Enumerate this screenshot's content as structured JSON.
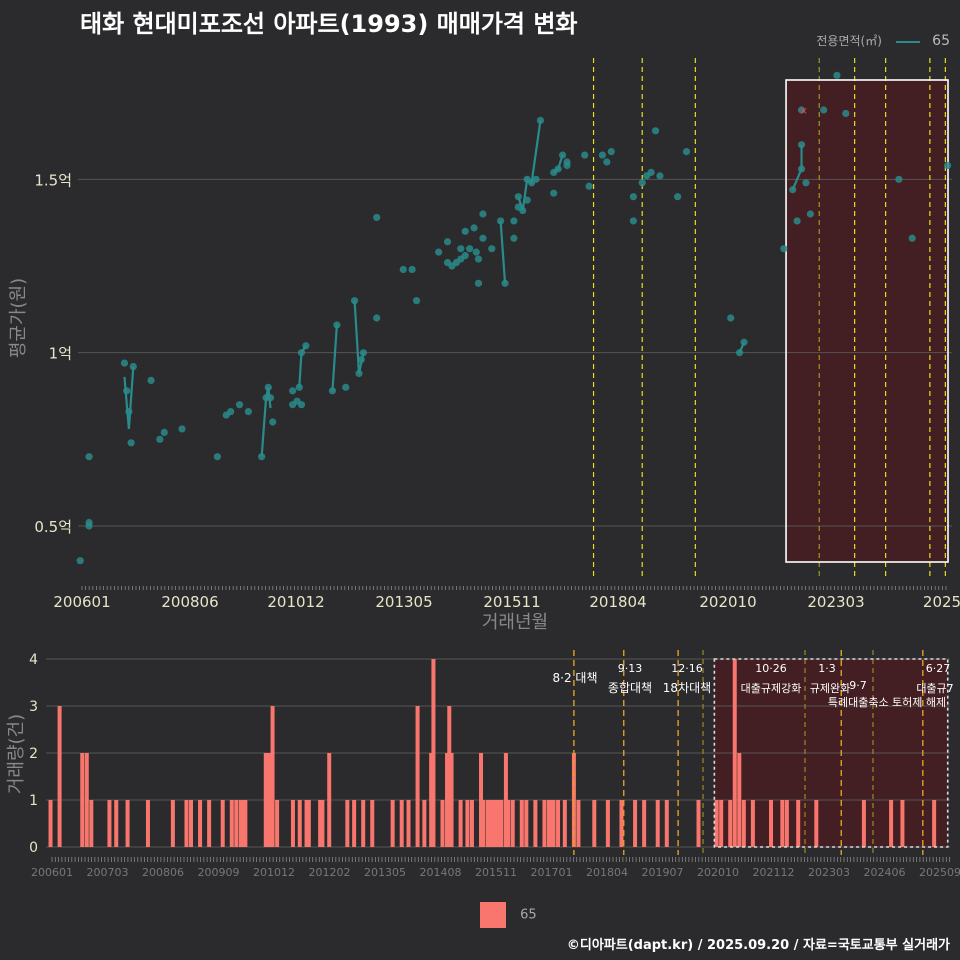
{
  "title": "태화 현대미포조선 아파트(1993) 매매가격 변화",
  "legend_top": {
    "label": "전용면적(㎡)",
    "value": "65",
    "color": "#2a8b8b"
  },
  "legend_bottom": {
    "value": "65",
    "color": "#f8766d"
  },
  "footer": "©디아파트(dapt.kr) / 2025.09.20 / 자료=국토교통부 실거래가",
  "chart_data": [
    {
      "type": "scatter",
      "title": "태화 현대미포조선 아파트(1993) 매매가격 변화",
      "xlabel": "거래년월",
      "ylabel": "평균가(원)",
      "x_ticks": [
        "200601",
        "200806",
        "201012",
        "201305",
        "201511",
        "201804",
        "202010",
        "202303",
        "2025"
      ],
      "y_ticks": [
        {
          "v": 0.5,
          "label": "0.5억"
        },
        {
          "v": 1.0,
          "label": "1억"
        },
        {
          "v": 1.5,
          "label": "1.5억"
        }
      ],
      "ylim": [
        0.35,
        1.85
      ],
      "xlim": [
        2005.95,
        2025.7
      ],
      "points": [
        [
          2006.0,
          0.4
        ],
        [
          2006.2,
          0.5
        ],
        [
          2006.2,
          0.51
        ],
        [
          2006.2,
          0.7
        ],
        [
          2007.0,
          0.97
        ],
        [
          2007.05,
          0.89
        ],
        [
          2007.1,
          0.83
        ],
        [
          2007.15,
          0.74
        ],
        [
          2007.2,
          0.96
        ],
        [
          2007.6,
          0.92
        ],
        [
          2007.8,
          0.75
        ],
        [
          2007.9,
          0.77
        ],
        [
          2008.3,
          0.78
        ],
        [
          2009.1,
          0.7
        ],
        [
          2009.3,
          0.82
        ],
        [
          2009.4,
          0.83
        ],
        [
          2009.6,
          0.85
        ],
        [
          2009.8,
          0.83
        ],
        [
          2010.1,
          0.7
        ],
        [
          2010.2,
          0.87
        ],
        [
          2010.25,
          0.9
        ],
        [
          2010.3,
          0.87
        ],
        [
          2010.35,
          0.8
        ],
        [
          2010.8,
          0.85
        ],
        [
          2010.8,
          0.89
        ],
        [
          2010.9,
          0.86
        ],
        [
          2010.95,
          0.9
        ],
        [
          2011.0,
          0.85
        ],
        [
          2011.0,
          1.0
        ],
        [
          2011.1,
          1.02
        ],
        [
          2011.7,
          0.89
        ],
        [
          2011.8,
          1.08
        ],
        [
          2012.0,
          0.9
        ],
        [
          2012.2,
          1.15
        ],
        [
          2012.3,
          0.94
        ],
        [
          2012.35,
          0.98
        ],
        [
          2012.4,
          1.0
        ],
        [
          2012.7,
          1.1
        ],
        [
          2012.7,
          1.39
        ],
        [
          2013.3,
          1.24
        ],
        [
          2013.5,
          1.24
        ],
        [
          2013.6,
          1.15
        ],
        [
          2014.1,
          1.29
        ],
        [
          2014.3,
          1.26
        ],
        [
          2014.3,
          1.32
        ],
        [
          2014.4,
          1.25
        ],
        [
          2014.5,
          1.26
        ],
        [
          2014.6,
          1.27
        ],
        [
          2014.6,
          1.3
        ],
        [
          2014.7,
          1.28
        ],
        [
          2014.7,
          1.35
        ],
        [
          2014.8,
          1.3
        ],
        [
          2014.9,
          1.36
        ],
        [
          2014.95,
          1.29
        ],
        [
          2015.0,
          1.2
        ],
        [
          2015.0,
          1.27
        ],
        [
          2015.1,
          1.33
        ],
        [
          2015.1,
          1.4
        ],
        [
          2015.3,
          1.3
        ],
        [
          2015.5,
          1.38
        ],
        [
          2015.6,
          1.2
        ],
        [
          2015.8,
          1.33
        ],
        [
          2015.8,
          1.38
        ],
        [
          2015.9,
          1.42
        ],
        [
          2015.9,
          1.45
        ],
        [
          2016.0,
          1.41
        ],
        [
          2016.1,
          1.44
        ],
        [
          2016.1,
          1.5
        ],
        [
          2016.2,
          1.49
        ],
        [
          2016.3,
          1.5
        ],
        [
          2016.4,
          1.67
        ],
        [
          2016.7,
          1.46
        ],
        [
          2016.7,
          1.52
        ],
        [
          2016.8,
          1.53
        ],
        [
          2016.9,
          1.57
        ],
        [
          2017.0,
          1.55
        ],
        [
          2017.0,
          1.54
        ],
        [
          2017.4,
          1.57
        ],
        [
          2017.5,
          1.48
        ],
        [
          2017.8,
          1.57
        ],
        [
          2017.9,
          1.55
        ],
        [
          2018.0,
          1.58
        ],
        [
          2018.5,
          1.45
        ],
        [
          2018.5,
          1.38
        ],
        [
          2018.7,
          1.49
        ],
        [
          2018.8,
          1.51
        ],
        [
          2018.9,
          1.52
        ],
        [
          2019.0,
          1.64
        ],
        [
          2019.1,
          1.51
        ],
        [
          2019.5,
          1.45
        ],
        [
          2019.7,
          1.58
        ],
        [
          2020.7,
          1.1
        ],
        [
          2020.9,
          1.0
        ],
        [
          2021.0,
          1.03
        ],
        [
          2021.9,
          1.3
        ],
        [
          2022.1,
          1.47
        ],
        [
          2022.2,
          1.38
        ],
        [
          2022.3,
          1.53
        ],
        [
          2022.3,
          1.6
        ],
        [
          2022.3,
          1.7
        ],
        [
          2022.4,
          1.49
        ],
        [
          2022.5,
          1.4
        ],
        [
          2022.8,
          1.7
        ],
        [
          2023.1,
          1.8
        ],
        [
          2023.3,
          1.69
        ],
        [
          2024.5,
          1.5
        ],
        [
          2024.8,
          1.33
        ],
        [
          2025.6,
          1.54
        ]
      ],
      "lines": [
        [
          [
            2007.0,
            0.93
          ],
          [
            2007.1,
            0.78
          ],
          [
            2007.2,
            0.96
          ]
        ],
        [
          [
            2010.1,
            0.7
          ],
          [
            2010.2,
            0.87
          ],
          [
            2010.25,
            0.9
          ],
          [
            2010.3,
            0.84
          ]
        ],
        [
          [
            2010.95,
            0.9
          ],
          [
            2011.0,
            1.0
          ],
          [
            2011.1,
            1.02
          ]
        ],
        [
          [
            2011.7,
            0.89
          ],
          [
            2011.8,
            1.08
          ]
        ],
        [
          [
            2012.2,
            1.15
          ],
          [
            2012.3,
            0.94
          ],
          [
            2012.4,
            1.0
          ]
        ],
        [
          [
            2015.5,
            1.38
          ],
          [
            2015.6,
            1.2
          ]
        ],
        [
          [
            2015.9,
            1.45
          ],
          [
            2016.0,
            1.41
          ],
          [
            2016.1,
            1.5
          ],
          [
            2016.2,
            1.49
          ],
          [
            2016.4,
            1.67
          ]
        ],
        [
          [
            2016.7,
            1.52
          ],
          [
            2016.8,
            1.53
          ],
          [
            2016.9,
            1.57
          ]
        ],
        [
          [
            2020.9,
            1.0
          ],
          [
            2021.0,
            1.03
          ]
        ],
        [
          [
            2022.1,
            1.47
          ],
          [
            2022.3,
            1.53
          ],
          [
            2022.3,
            1.6
          ]
        ]
      ],
      "marker_red": [
        2022.35,
        1.7
      ],
      "vlines_yellow": [
        2017.6,
        2018.7,
        2019.9,
        2023.5,
        2024.2,
        2025.2,
        2025.55
      ],
      "vlines_olive": [
        2022.7
      ],
      "highlight_range": [
        2021.95,
        2025.7
      ]
    },
    {
      "type": "bar",
      "ylabel": "거래량(건)",
      "ylim": [
        0,
        4
      ],
      "y_ticks": [
        0,
        1,
        2,
        3,
        4
      ],
      "x_ticks": [
        "200601",
        "200703",
        "200806",
        "200909",
        "201012",
        "201202",
        "201305",
        "201408",
        "201511",
        "201701",
        "201804",
        "201907",
        "202010",
        "202112",
        "202303",
        "202406",
        "202509"
      ],
      "bars": [
        [
          2006.05,
          1
        ],
        [
          2006.25,
          3
        ],
        [
          2006.75,
          2
        ],
        [
          2006.85,
          2
        ],
        [
          2006.95,
          1
        ],
        [
          2007.35,
          1
        ],
        [
          2007.5,
          1
        ],
        [
          2007.75,
          1
        ],
        [
          2008.2,
          1
        ],
        [
          2008.75,
          1
        ],
        [
          2009.05,
          1
        ],
        [
          2009.15,
          1
        ],
        [
          2009.35,
          1
        ],
        [
          2009.55,
          1
        ],
        [
          2009.85,
          1
        ],
        [
          2010.05,
          1
        ],
        [
          2010.15,
          1
        ],
        [
          2010.25,
          1
        ],
        [
          2010.3,
          1
        ],
        [
          2010.35,
          1
        ],
        [
          2010.8,
          2
        ],
        [
          2010.85,
          2
        ],
        [
          2010.9,
          2
        ],
        [
          2010.95,
          3
        ],
        [
          2011.05,
          1
        ],
        [
          2011.4,
          1
        ],
        [
          2011.55,
          1
        ],
        [
          2011.7,
          1
        ],
        [
          2011.75,
          1
        ],
        [
          2012.0,
          1
        ],
        [
          2012.05,
          1
        ],
        [
          2012.2,
          2
        ],
        [
          2012.6,
          1
        ],
        [
          2012.75,
          1
        ],
        [
          2012.95,
          1
        ],
        [
          2013.15,
          1
        ],
        [
          2013.6,
          1
        ],
        [
          2013.8,
          1
        ],
        [
          2013.95,
          1
        ],
        [
          2014.15,
          3
        ],
        [
          2014.3,
          1
        ],
        [
          2014.45,
          2
        ],
        [
          2014.5,
          4
        ],
        [
          2014.7,
          1
        ],
        [
          2014.8,
          2
        ],
        [
          2014.85,
          3
        ],
        [
          2014.9,
          2
        ],
        [
          2015.1,
          1
        ],
        [
          2015.25,
          1
        ],
        [
          2015.35,
          1
        ],
        [
          2015.55,
          2
        ],
        [
          2015.6,
          1
        ],
        [
          2015.7,
          1
        ],
        [
          2015.75,
          1
        ],
        [
          2015.8,
          1
        ],
        [
          2015.85,
          1
        ],
        [
          2015.9,
          1
        ],
        [
          2015.95,
          1
        ],
        [
          2016.0,
          1
        ],
        [
          2016.1,
          2
        ],
        [
          2016.15,
          1
        ],
        [
          2016.25,
          1
        ],
        [
          2016.45,
          1
        ],
        [
          2016.55,
          1
        ],
        [
          2016.75,
          1
        ],
        [
          2016.95,
          1
        ],
        [
          2017.05,
          1
        ],
        [
          2017.1,
          1
        ],
        [
          2017.15,
          1
        ],
        [
          2017.25,
          1
        ],
        [
          2017.4,
          1
        ],
        [
          2017.6,
          2
        ],
        [
          2017.7,
          1
        ],
        [
          2018.05,
          1
        ],
        [
          2018.35,
          1
        ],
        [
          2018.65,
          1
        ],
        [
          2018.95,
          1
        ],
        [
          2019.15,
          1
        ],
        [
          2019.45,
          1
        ],
        [
          2019.65,
          1
        ],
        [
          2020.35,
          1
        ],
        [
          2020.75,
          1
        ],
        [
          2020.85,
          1
        ],
        [
          2021.05,
          1
        ],
        [
          2021.15,
          4
        ],
        [
          2021.25,
          2
        ],
        [
          2021.35,
          1
        ],
        [
          2021.55,
          1
        ],
        [
          2021.95,
          1
        ],
        [
          2022.2,
          1
        ],
        [
          2022.3,
          1
        ],
        [
          2022.55,
          1
        ],
        [
          2022.95,
          1
        ],
        [
          2024.0,
          1
        ],
        [
          2024.6,
          1
        ],
        [
          2024.85,
          1
        ],
        [
          2025.55,
          1
        ]
      ],
      "vlines_gold": [
        2017.6,
        2018.7,
        2019.9,
        2023.5,
        2025.3
      ],
      "vlines_olive": [
        2020.45,
        2022.7,
        2024.2
      ],
      "highlight_range": [
        2020.7,
        2025.85
      ],
      "annotations": [
        {
          "date": "8·2 대책",
          "text": ""
        },
        {
          "date": "9·13",
          "text": "종합대책"
        },
        {
          "date": "12·16",
          "text": "18차대책"
        },
        {
          "date": "10·26",
          "text": "대출규제강화"
        },
        {
          "date": "1·3",
          "text": "규제완화"
        },
        {
          "date": "9·7",
          "text": "특례대출축소 토허제 해제"
        },
        {
          "date": "6·27",
          "text": "대출규7"
        }
      ]
    }
  ]
}
